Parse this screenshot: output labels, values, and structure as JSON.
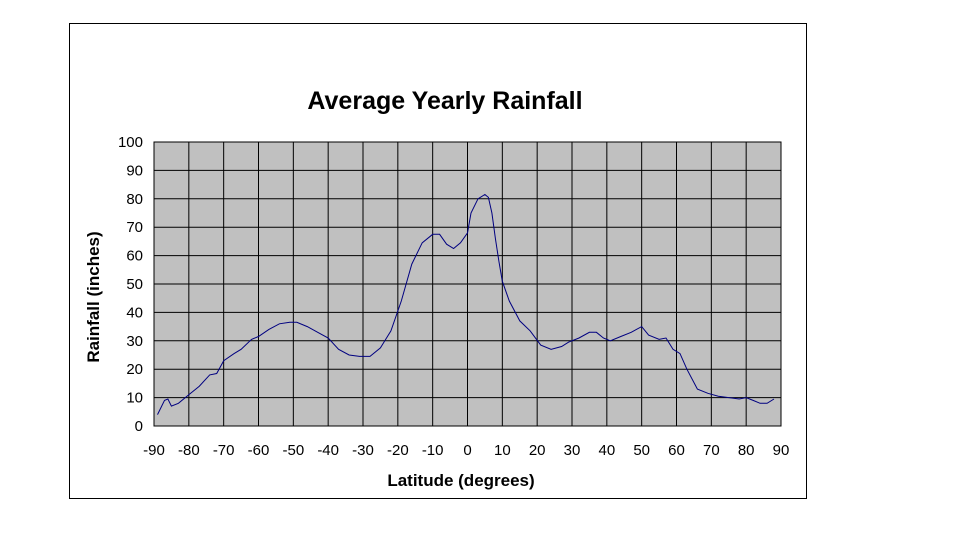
{
  "chart_data": {
    "type": "line",
    "title": "Average Yearly Rainfall",
    "xlabel": "Latitude (degrees)",
    "ylabel": "Rainfall (inches)",
    "xlim": [
      -90,
      90
    ],
    "ylim": [
      0,
      100
    ],
    "x_ticks": [
      -90,
      -80,
      -70,
      -60,
      -50,
      -40,
      -30,
      -20,
      -10,
      0,
      10,
      20,
      30,
      40,
      50,
      60,
      70,
      80,
      90
    ],
    "y_ticks": [
      0,
      10,
      20,
      30,
      40,
      50,
      60,
      70,
      80,
      90,
      100
    ],
    "grid": true,
    "plot_background": "#c0c0c0",
    "line_color": "#000080",
    "series": [
      {
        "x": [
          -89,
          -87,
          -86,
          -85,
          -83,
          -80,
          -77,
          -74,
          -72,
          -70,
          -67,
          -65,
          -62,
          -60,
          -57,
          -54,
          -51,
          -49,
          -46,
          -43,
          -40,
          -37,
          -34,
          -31,
          -28,
          -25,
          -22,
          -19,
          -16,
          -13,
          -10,
          -8,
          -6,
          -4,
          -2,
          0,
          1,
          3,
          5,
          6,
          7,
          8,
          9,
          10,
          12,
          15,
          18,
          21,
          24,
          27,
          29,
          32,
          35,
          37,
          39,
          41,
          44,
          47,
          50,
          52,
          55,
          57,
          59,
          61,
          63,
          66,
          69,
          72,
          75,
          78,
          80,
          82,
          84,
          86,
          88
        ],
        "y": [
          4,
          9,
          9.5,
          7,
          8,
          11,
          14,
          18,
          18.5,
          23,
          25.5,
          27,
          30.5,
          31.5,
          34,
          36,
          36.5,
          36.5,
          35,
          33,
          31,
          27,
          25,
          24.5,
          24.5,
          27.5,
          33.5,
          44,
          57,
          64.5,
          67.5,
          67.5,
          64,
          62.5,
          64.5,
          68,
          75,
          80,
          81.5,
          80.5,
          75,
          66,
          58,
          51,
          44,
          37,
          33.5,
          28.5,
          27,
          28,
          29.5,
          31,
          33,
          33,
          31,
          30,
          31.5,
          33,
          35,
          32,
          30.5,
          31,
          27,
          25.5,
          20,
          13,
          11.5,
          10.5,
          10,
          9.5,
          10,
          9,
          8,
          8,
          9.5
        ]
      }
    ]
  }
}
